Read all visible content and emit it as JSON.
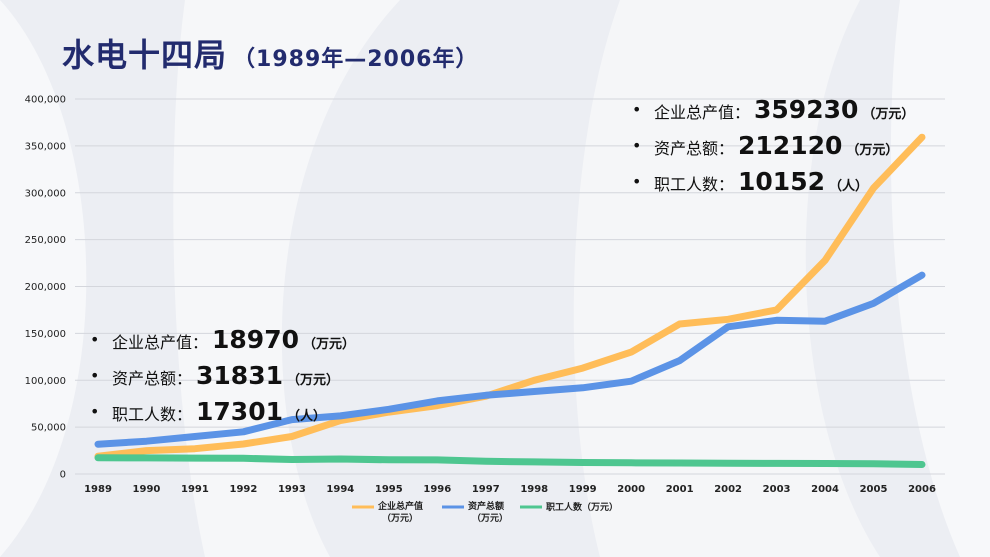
{
  "title": {
    "main": "水电十四局",
    "sub": "（1989年—2006年）"
  },
  "stats_1989": [
    {
      "label": "企业总产值：",
      "value": "18970",
      "unit": "（万元）"
    },
    {
      "label": "资产总额：",
      "value": "31831",
      "unit": "（万元）"
    },
    {
      "label": "职工人数：",
      "value": "17301",
      "unit": "（人）"
    }
  ],
  "stats_2006": [
    {
      "label": "企业总产值：",
      "value": "359230",
      "unit": "（万元）"
    },
    {
      "label": "资产总额：",
      "value": "212120",
      "unit": "（万元）"
    },
    {
      "label": "职工人数：",
      "value": "10152",
      "unit": "（人）"
    }
  ],
  "chart_data": {
    "type": "line",
    "categories": [
      "1989",
      "1990",
      "1991",
      "1992",
      "1993",
      "1994",
      "1995",
      "1996",
      "1997",
      "1998",
      "1999",
      "2000",
      "2001",
      "2002",
      "2003",
      "2004",
      "2005",
      "2006"
    ],
    "ylim": [
      0,
      400000
    ],
    "yticks": [
      0,
      50000,
      100000,
      150000,
      200000,
      250000,
      300000,
      350000,
      400000
    ],
    "ytick_labels": [
      "0",
      "50,000",
      "100,000",
      "150,000",
      "200,000",
      "250,000",
      "300,000",
      "350,000",
      "400,000"
    ],
    "grid": true,
    "legend_position": "bottom",
    "series": [
      {
        "name": "企业总产值\n（万元）",
        "color": "#ffbd59",
        "values": [
          18970,
          25000,
          27000,
          32000,
          40000,
          57000,
          66000,
          73000,
          83000,
          100000,
          113000,
          130000,
          160000,
          165000,
          175000,
          228000,
          305000,
          359230
        ]
      },
      {
        "name": "资产总额\n（万元）",
        "color": "#5b93e6",
        "values": [
          31831,
          35000,
          40000,
          45000,
          58000,
          62000,
          69000,
          78000,
          84000,
          88000,
          92000,
          99000,
          121000,
          157000,
          164000,
          163000,
          182000,
          212120
        ]
      },
      {
        "name": "职工人数（万元）",
        "color": "#4ec690",
        "values": [
          17301,
          17200,
          17000,
          16800,
          15500,
          16000,
          15200,
          15000,
          13500,
          12900,
          12300,
          11900,
          11700,
          11500,
          11300,
          11200,
          11000,
          10152
        ]
      }
    ]
  }
}
